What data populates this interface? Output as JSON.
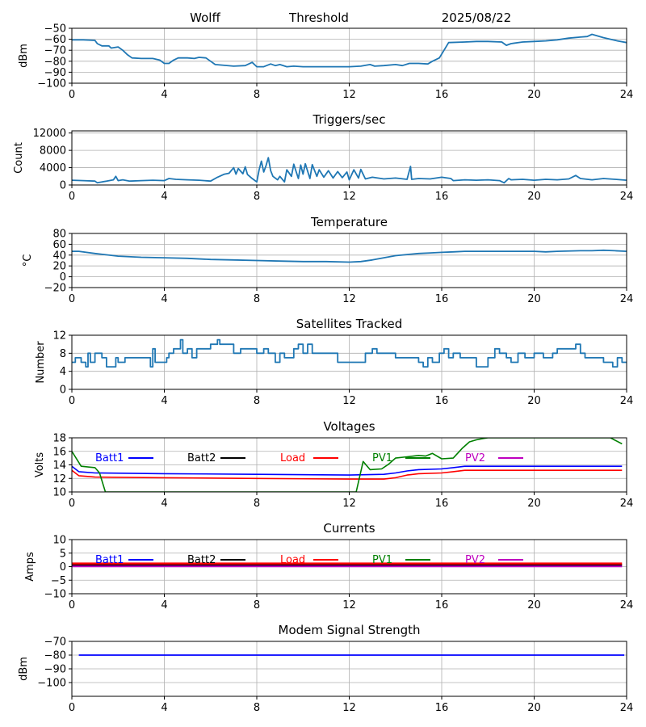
{
  "header": {
    "station": "Wolff",
    "mode": "Threshold",
    "date": "2025/08/22"
  },
  "chart_data": [
    {
      "id": "signal",
      "type": "line",
      "title": "",
      "ylabel": "dBm",
      "xlim": [
        0,
        24
      ],
      "ylim": [
        -100,
        -50
      ],
      "xticks": [
        0,
        4,
        8,
        12,
        16,
        20,
        24
      ],
      "yticks": [
        -100,
        -90,
        -80,
        -70,
        -60,
        -50
      ],
      "ytick_labels": [
        "−100",
        "−90",
        "−80",
        "−70",
        "−60",
        "−50"
      ],
      "grid": true,
      "series": [
        {
          "name": "signal",
          "color": "#1f77b4",
          "x": [
            0,
            0.5,
            1.0,
            1.1,
            1.3,
            1.6,
            1.7,
            2.0,
            2.2,
            2.4,
            2.6,
            3.0,
            3.5,
            3.8,
            4.0,
            4.2,
            4.4,
            4.6,
            5.0,
            5.3,
            5.5,
            5.8,
            6.0,
            6.2,
            6.5,
            7.0,
            7.5,
            7.8,
            8.0,
            8.3,
            8.6,
            8.8,
            9.0,
            9.3,
            9.6,
            10.0,
            11.0,
            12.0,
            12.5,
            12.9,
            13.1,
            13.5,
            14.0,
            14.3,
            14.6,
            15.0,
            15.4,
            15.6,
            15.9,
            16.1,
            16.3,
            17.0,
            17.5,
            18.0,
            18.6,
            18.8,
            19.0,
            19.5,
            20.0,
            20.5,
            21.0,
            21.5,
            22.0,
            22.3,
            22.5,
            23.0,
            23.3,
            23.6,
            24.0
          ],
          "y": [
            -60.5,
            -60.5,
            -61,
            -64,
            -66,
            -66,
            -68,
            -67,
            -70,
            -74,
            -77,
            -77.5,
            -77.5,
            -79,
            -82,
            -82,
            -79,
            -77,
            -77,
            -77.5,
            -76.5,
            -77,
            -80,
            -83,
            -83.5,
            -84.5,
            -84,
            -81,
            -85,
            -85,
            -82.5,
            -84,
            -83,
            -85,
            -84.5,
            -85,
            -85,
            -85,
            -84.5,
            -83,
            -84.5,
            -84,
            -83,
            -84,
            -82,
            -82,
            -82.5,
            -80,
            -77,
            -70,
            -63,
            -62.5,
            -62,
            -62,
            -62.5,
            -65.5,
            -64,
            -62.5,
            -62,
            -61.5,
            -60.5,
            -59,
            -58,
            -57.5,
            -55.5,
            -58.5,
            -60,
            -61.5,
            -63
          ]
        }
      ]
    },
    {
      "id": "triggers",
      "type": "line",
      "title": "Triggers/sec",
      "ylabel": "Count",
      "xlim": [
        0,
        24
      ],
      "ylim": [
        0,
        12500
      ],
      "xticks": [
        0,
        4,
        8,
        12,
        16,
        20,
        24
      ],
      "yticks": [
        0,
        4000,
        8000,
        12000
      ],
      "ytick_labels": [
        "0",
        "4000",
        "8000",
        "12000"
      ],
      "grid": true,
      "series": [
        {
          "name": "triggers",
          "color": "#1f77b4",
          "x": [
            0,
            0.5,
            1.0,
            1.1,
            1.5,
            1.8,
            1.9,
            2.0,
            2.2,
            2.5,
            3.0,
            3.5,
            4.0,
            4.2,
            4.5,
            5.0,
            5.5,
            6.0,
            6.3,
            6.6,
            6.8,
            7.0,
            7.1,
            7.2,
            7.4,
            7.5,
            7.6,
            7.8,
            8.0,
            8.1,
            8.2,
            8.3,
            8.4,
            8.5,
            8.6,
            8.7,
            8.9,
            9.0,
            9.2,
            9.3,
            9.5,
            9.6,
            9.8,
            9.9,
            10.0,
            10.1,
            10.3,
            10.4,
            10.6,
            10.7,
            10.9,
            11.1,
            11.3,
            11.5,
            11.7,
            11.9,
            12.0,
            12.2,
            12.4,
            12.5,
            12.7,
            13.0,
            13.5,
            14.0,
            14.5,
            14.65,
            14.7,
            15.0,
            15.5,
            16.0,
            16.4,
            16.5,
            17.0,
            17.5,
            18.0,
            18.5,
            18.7,
            18.9,
            19.0,
            19.5,
            20.0,
            20.5,
            21.0,
            21.5,
            21.8,
            22.0,
            22.5,
            23.0,
            23.5,
            24.0
          ],
          "y": [
            1100,
            1000,
            900,
            500,
            900,
            1200,
            2000,
            1000,
            1200,
            900,
            1000,
            1100,
            1000,
            1500,
            1300,
            1200,
            1100,
            900,
            1800,
            2500,
            2700,
            4000,
            2500,
            3800,
            2600,
            4200,
            2400,
            1500,
            700,
            3500,
            5500,
            3000,
            4500,
            6300,
            3300,
            2000,
            1200,
            2000,
            700,
            3500,
            2000,
            4800,
            1500,
            4600,
            2500,
            4900,
            1500,
            4700,
            2000,
            3500,
            1800,
            3300,
            1600,
            3100,
            1700,
            3000,
            1200,
            3500,
            1600,
            3600,
            1400,
            1800,
            1400,
            1600,
            1300,
            4300,
            1300,
            1500,
            1400,
            1800,
            1500,
            1000,
            1200,
            1100,
            1200,
            1000,
            500,
            1500,
            1200,
            1300,
            1100,
            1300,
            1200,
            1400,
            2200,
            1500,
            1200,
            1500,
            1300,
            1100
          ]
        }
      ]
    },
    {
      "id": "temperature",
      "type": "line",
      "title": "Temperature",
      "ylabel": "°C",
      "xlim": [
        0,
        24
      ],
      "ylim": [
        -20,
        80
      ],
      "xticks": [
        0,
        4,
        8,
        12,
        16,
        20,
        24
      ],
      "yticks": [
        -20,
        0,
        20,
        40,
        60,
        80
      ],
      "ytick_labels": [
        "−20",
        "0",
        "20",
        "40",
        "60",
        "80"
      ],
      "grid": true,
      "series": [
        {
          "name": "temperature",
          "color": "#1f77b4",
          "x": [
            0,
            0.3,
            1.0,
            2.0,
            3.0,
            4.0,
            5.0,
            6.0,
            7.0,
            8.0,
            9.0,
            10.0,
            11.0,
            12.0,
            12.5,
            13.0,
            13.5,
            14.0,
            14.5,
            15.0,
            15.5,
            16.0,
            16.5,
            17.0,
            18.0,
            19.0,
            20.0,
            20.5,
            21.0,
            22.0,
            22.5,
            23.0,
            23.5,
            24.0
          ],
          "y": [
            47,
            47,
            43,
            38,
            36,
            35,
            34,
            32,
            31,
            30,
            29,
            28,
            28,
            27,
            28,
            31,
            35,
            39,
            41,
            43,
            44,
            45,
            46,
            47,
            47,
            47,
            47,
            46,
            47,
            48,
            48,
            49,
            48,
            47
          ]
        }
      ]
    },
    {
      "id": "satellites",
      "type": "line",
      "title": "Satellites Tracked",
      "ylabel": "Number",
      "xlim": [
        0,
        24
      ],
      "ylim": [
        0,
        12
      ],
      "xticks": [
        0,
        4,
        8,
        12,
        16,
        20,
        24
      ],
      "yticks": [
        0,
        4,
        8,
        12
      ],
      "ytick_labels": [
        "0",
        "4",
        "8",
        "12"
      ],
      "grid": true,
      "series": [
        {
          "name": "satellites",
          "color": "#1f77b4",
          "x": [
            0,
            0.15,
            0.4,
            0.5,
            0.6,
            0.7,
            0.8,
            1.0,
            1.3,
            1.5,
            1.9,
            2.0,
            2.3,
            3.2,
            3.4,
            3.5,
            3.6,
            3.8,
            4.1,
            4.2,
            4.4,
            4.6,
            4.7,
            4.8,
            5.0,
            5.2,
            5.4,
            5.6,
            6.0,
            6.2,
            6.3,
            6.4,
            6.5,
            6.8,
            7.0,
            7.3,
            8.0,
            8.3,
            8.5,
            8.8,
            9.0,
            9.2,
            9.6,
            9.8,
            10.0,
            10.2,
            10.4,
            11.0,
            11.5,
            12.0,
            12.5,
            12.7,
            13.0,
            13.2,
            13.5,
            14.0,
            14.5,
            15.0,
            15.2,
            15.4,
            15.6,
            15.9,
            16.1,
            16.3,
            16.5,
            16.8,
            17.0,
            17.5,
            18.0,
            18.3,
            18.5,
            18.8,
            19.0,
            19.3,
            19.6,
            20.0,
            20.4,
            20.8,
            21.0,
            21.5,
            21.8,
            22.0,
            22.2,
            22.6,
            23.0,
            23.2,
            23.4,
            23.6,
            23.8,
            24.0
          ],
          "y": [
            6,
            7,
            6,
            6,
            5,
            8,
            6,
            8,
            7,
            5,
            7,
            6,
            7,
            7,
            5,
            9,
            6,
            6,
            7,
            8,
            9,
            9,
            11,
            8,
            9,
            7,
            9,
            9,
            10,
            10,
            11,
            10,
            10,
            10,
            8,
            9,
            8,
            9,
            8,
            6,
            8,
            7,
            9,
            10,
            8,
            10,
            8,
            8,
            6,
            6,
            6,
            8,
            9,
            8,
            8,
            7,
            7,
            6,
            5,
            7,
            6,
            8,
            9,
            7,
            8,
            7,
            7,
            5,
            7,
            9,
            8,
            7,
            6,
            8,
            7,
            8,
            7,
            8,
            9,
            9,
            10,
            8,
            7,
            7,
            6,
            6,
            5,
            7,
            6,
            6
          ]
        }
      ]
    },
    {
      "id": "voltages",
      "type": "line",
      "title": "Voltages",
      "ylabel": "Volts",
      "xlim": [
        0,
        24
      ],
      "ylim": [
        10,
        18
      ],
      "xticks": [
        0,
        4,
        8,
        12,
        16,
        20,
        24
      ],
      "yticks": [
        10,
        12,
        14,
        16,
        18
      ],
      "ytick_labels": [
        "10",
        "12",
        "14",
        "16",
        "18"
      ],
      "grid": true,
      "legend": [
        "Batt1",
        "Batt2",
        "Load",
        "PV1",
        "PV2"
      ],
      "series": [
        {
          "name": "Batt1",
          "color": "#0000ff",
          "x": [
            0,
            0.3,
            1.0,
            4.0,
            8.0,
            12.0,
            13.5,
            14.0,
            14.5,
            15.0,
            16.0,
            16.5,
            17.0,
            18.0,
            20.0,
            22.0,
            23.8
          ],
          "y": [
            13.8,
            13.0,
            12.8,
            12.7,
            12.6,
            12.5,
            12.6,
            12.8,
            13.1,
            13.3,
            13.4,
            13.6,
            13.8,
            13.8,
            13.8,
            13.8,
            13.8
          ]
        },
        {
          "name": "Load",
          "color": "#ff0000",
          "x": [
            0,
            0.3,
            1.0,
            4.0,
            8.0,
            12.0,
            13.5,
            14.0,
            14.5,
            15.0,
            16.0,
            16.5,
            17.0,
            18.0,
            20.0,
            22.0,
            23.8
          ],
          "y": [
            13.2,
            12.4,
            12.2,
            12.1,
            12.0,
            11.9,
            11.9,
            12.1,
            12.5,
            12.7,
            12.8,
            13.0,
            13.2,
            13.2,
            13.2,
            13.2,
            13.2
          ]
        },
        {
          "name": "PV1",
          "color": "#008000",
          "x": [
            0,
            0.4,
            1.0,
            1.2,
            1.45,
            12.3,
            12.6,
            12.9,
            13.4,
            13.7,
            14.0,
            14.5,
            15.0,
            15.3,
            15.6,
            16.0,
            16.5,
            16.9,
            17.2,
            17.5,
            17.8,
            18.0,
            23.3,
            23.8
          ],
          "y": [
            16.0,
            13.8,
            13.6,
            12.8,
            10.0,
            10.0,
            14.5,
            13.3,
            13.4,
            14.1,
            15.0,
            15.2,
            15.4,
            15.3,
            15.7,
            14.9,
            15.0,
            16.5,
            17.4,
            17.7,
            17.9,
            18.0,
            18.0,
            17.1
          ]
        },
        {
          "name": "Batt2",
          "color": "#000000",
          "x": [],
          "y": []
        },
        {
          "name": "PV2",
          "color": "#bf00bf",
          "x": [],
          "y": []
        }
      ]
    },
    {
      "id": "currents",
      "type": "line",
      "title": "Currents",
      "ylabel": "Amps",
      "xlim": [
        0,
        24
      ],
      "ylim": [
        -10,
        10
      ],
      "xticks": [
        0,
        4,
        8,
        12,
        16,
        20,
        24
      ],
      "yticks": [
        -10,
        -5,
        0,
        5,
        10
      ],
      "ytick_labels": [
        "−10",
        "−5",
        "0",
        "5",
        "10"
      ],
      "grid": true,
      "legend": [
        "Batt1",
        "Batt2",
        "Load",
        "PV1",
        "PV2"
      ],
      "series": [
        {
          "name": "PV2",
          "color": "#bf00bf",
          "x": [
            0,
            23.8
          ],
          "y": [
            0.3,
            0.3
          ]
        },
        {
          "name": "Load",
          "color": "#ff0000",
          "x": [
            0,
            23.8
          ],
          "y": [
            1.0,
            1.0
          ]
        },
        {
          "name": "Batt2",
          "color": "#000000",
          "x": [
            0,
            23.8
          ],
          "y": [
            0.6,
            0.6
          ]
        },
        {
          "name": "Batt1",
          "color": "#0000ff",
          "x": [],
          "y": []
        },
        {
          "name": "PV1",
          "color": "#008000",
          "x": [],
          "y": []
        }
      ]
    },
    {
      "id": "modem",
      "type": "line",
      "title": "Modem Signal Strength",
      "ylabel": "dBm",
      "xlim": [
        0,
        24
      ],
      "ylim": [
        -110,
        -70
      ],
      "xticks": [
        0,
        4,
        8,
        12,
        16,
        20,
        24
      ],
      "yticks": [
        -100,
        -90,
        -80,
        -70
      ],
      "ytick_labels": [
        "−100",
        "−90",
        "−80",
        "−70"
      ],
      "grid": true,
      "series": [
        {
          "name": "modem",
          "color": "#0000ff",
          "x": [
            0.3,
            23.9
          ],
          "y": [
            -80,
            -80
          ]
        }
      ]
    }
  ],
  "legend_colors": {
    "Batt1": "#0000ff",
    "Batt2": "#000000",
    "Load": "#ff0000",
    "PV1": "#008000",
    "PV2": "#bf00bf"
  }
}
